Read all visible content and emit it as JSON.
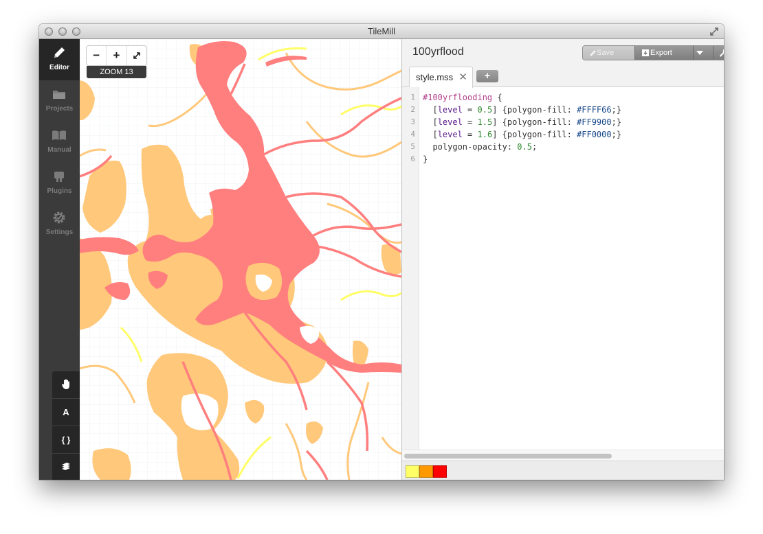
{
  "window": {
    "title": "TileMill"
  },
  "sidebar": {
    "items": [
      {
        "label": "Editor",
        "icon": "pencil-icon",
        "active": true
      },
      {
        "label": "Projects",
        "icon": "folder-icon",
        "active": false
      },
      {
        "label": "Manual",
        "icon": "book-icon",
        "active": false
      },
      {
        "label": "Plugins",
        "icon": "plug-icon",
        "active": false
      },
      {
        "label": "Settings",
        "icon": "gear-icon",
        "active": false
      }
    ]
  },
  "tools": [
    {
      "icon": "hand-icon"
    },
    {
      "label": "A",
      "icon": "font-icon"
    },
    {
      "label": "{ }",
      "icon": "braces-icon"
    },
    {
      "icon": "layers-icon"
    }
  ],
  "map": {
    "zoom_label": "ZOOM 13",
    "zoom_out": "−",
    "zoom_in": "+",
    "colors": {
      "flood_low": "#ffff66",
      "flood_mid": "#ffc87a",
      "flood_high": "#ff7f7f"
    }
  },
  "editor": {
    "project_title": "100yrflood",
    "buttons": {
      "save": "Save",
      "export": "Export"
    },
    "tab": {
      "label": "style.mss",
      "close": "✕"
    },
    "add_tab": "+",
    "line_numbers": [
      "1",
      "2",
      "3",
      "4",
      "5",
      "6"
    ],
    "code": {
      "selector": "#100yrflooding",
      "open_brace": " {",
      "rules": [
        {
          "key": "level",
          "value": "0.5",
          "prop": "polygon-fill",
          "color": "#FFFF66"
        },
        {
          "key": "level",
          "value": "1.5",
          "prop": "polygon-fill",
          "color": "#FF9900"
        },
        {
          "key": "level",
          "value": "1.6",
          "prop": "polygon-fill",
          "color": "#FF0000"
        }
      ],
      "opacity_prop": "polygon-opacity",
      "opacity_value": "0.5",
      "close_brace": "}"
    },
    "legend_colors": [
      "#FFFF66",
      "#FF9900",
      "#FF0000"
    ]
  }
}
